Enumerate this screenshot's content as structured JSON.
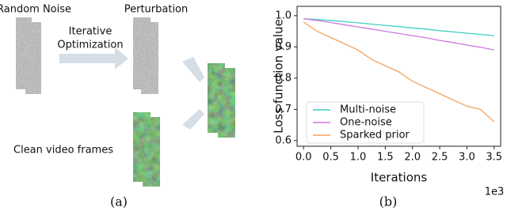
{
  "diagram": {
    "noise_label": "Random Noise",
    "perturbation_label": "Perturbation",
    "optimization_label": [
      "Iterative",
      "Optimization"
    ],
    "frames_label": "Clean video frames",
    "caption": "(a)"
  },
  "chart_data": {
    "type": "line",
    "caption": "(b)",
    "x_label": "Iterations",
    "y_label": "Loss function value",
    "x_offset_label": "1e3",
    "x": [
      0,
      0.25,
      0.5,
      0.75,
      1.0,
      1.25,
      1.5,
      1.75,
      2.0,
      2.25,
      2.5,
      2.75,
      3.0,
      3.25,
      3.5
    ],
    "xlim": [
      -0.12,
      3.62
    ],
    "ylim": [
      0.582,
      1.03
    ],
    "xticks": [
      {
        "value": 0,
        "label": "0.0"
      },
      0.5,
      {
        "value": 1,
        "label": "1.0"
      },
      1.5,
      {
        "value": 2,
        "label": "2.0"
      },
      2.5,
      {
        "value": 3,
        "label": "3.0"
      },
      3.5
    ],
    "yticks": [
      0.6,
      0.7,
      0.8,
      0.9,
      {
        "value": 1,
        "label": "1.0"
      }
    ],
    "legend": "lower left",
    "series": [
      {
        "name": "Multi-noise",
        "color": "#3fcfc4",
        "values": [
          0.99,
          0.988,
          0.985,
          0.981,
          0.977,
          0.973,
          0.969,
          0.965,
          0.961,
          0.957,
          0.952,
          0.948,
          0.944,
          0.94,
          0.936
        ]
      },
      {
        "name": "One-noise",
        "color": "#c97bd9",
        "values": [
          0.99,
          0.985,
          0.978,
          0.971,
          0.964,
          0.957,
          0.95,
          0.943,
          0.936,
          0.929,
          0.921,
          0.914,
          0.906,
          0.899,
          0.89
        ]
      },
      {
        "name": "Sparked prior",
        "color": "#f5a35c",
        "values": [
          0.98,
          0.95,
          0.93,
          0.91,
          0.89,
          0.86,
          0.84,
          0.82,
          0.79,
          0.77,
          0.75,
          0.73,
          0.71,
          0.7,
          0.66
        ]
      }
    ]
  }
}
